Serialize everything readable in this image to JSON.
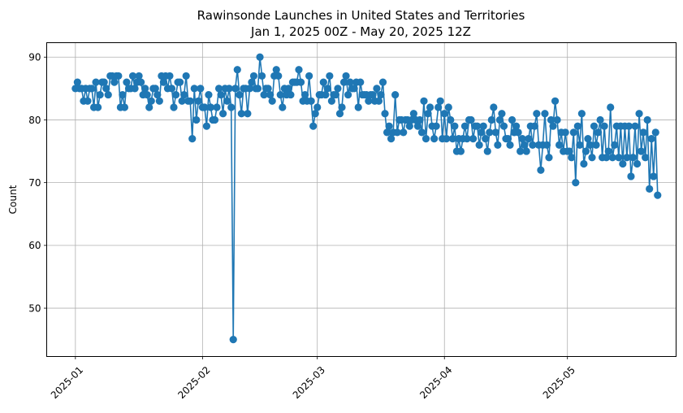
{
  "chart_data": {
    "type": "line",
    "title": "Rawinsonde Launches in United States and Territories",
    "subtitle": "Jan 1, 2025 00Z - May 20, 2025 12Z",
    "xlabel": "",
    "ylabel": "Count",
    "xlim": [
      "2024-12-25T00",
      "2025-05-27T12"
    ],
    "ylim": [
      42.3,
      92.3
    ],
    "grid": true,
    "color": "#1f77b4",
    "x_ticks": [
      {
        "label": "2025-01",
        "date": "2025-01-01T00"
      },
      {
        "label": "2025-02",
        "date": "2025-02-01T00"
      },
      {
        "label": "2025-03",
        "date": "2025-03-01T00"
      },
      {
        "label": "2025-04",
        "date": "2025-04-01T00"
      },
      {
        "label": "2025-05",
        "date": "2025-05-01T00"
      }
    ],
    "y_ticks": [
      50,
      60,
      70,
      80,
      90
    ],
    "series": [
      {
        "name": "",
        "start": "2025-01-01T00",
        "interval_hours": 12,
        "values": [
          85,
          86,
          85,
          85,
          83,
          85,
          83,
          85,
          85,
          82,
          86,
          82,
          84,
          86,
          86,
          85,
          84,
          87,
          87,
          86,
          87,
          87,
          82,
          84,
          82,
          86,
          85,
          85,
          87,
          85,
          86,
          87,
          86,
          84,
          85,
          84,
          82,
          83,
          85,
          85,
          84,
          83,
          87,
          86,
          87,
          85,
          87,
          85,
          82,
          84,
          86,
          86,
          83,
          84,
          87,
          83,
          83,
          77,
          85,
          80,
          83,
          85,
          82,
          82,
          79,
          84,
          82,
          80,
          80,
          82,
          85,
          84,
          81,
          85,
          83,
          85,
          82,
          45,
          85,
          88,
          84,
          81,
          85,
          85,
          81,
          85,
          86,
          87,
          85,
          85,
          90,
          87,
          84,
          85,
          85,
          84,
          83,
          87,
          88,
          87,
          84,
          82,
          85,
          84,
          85,
          84,
          86,
          86,
          86,
          88,
          86,
          83,
          84,
          83,
          87,
          83,
          79,
          81,
          82,
          84,
          84,
          86,
          84,
          85,
          87,
          83,
          84,
          84,
          85,
          81,
          82,
          86,
          87,
          84,
          86,
          85,
          85,
          86,
          82,
          86,
          84,
          84,
          84,
          83,
          84,
          84,
          83,
          85,
          83,
          84,
          86,
          81,
          78,
          79,
          77,
          78,
          84,
          78,
          80,
          80,
          78,
          80,
          80,
          79,
          80,
          81,
          80,
          79,
          80,
          78,
          83,
          77,
          81,
          82,
          79,
          77,
          79,
          82,
          83,
          77,
          81,
          77,
          82,
          80,
          77,
          79,
          75,
          77,
          75,
          77,
          79,
          77,
          80,
          80,
          77,
          79,
          79,
          76,
          78,
          79,
          77,
          75,
          78,
          80,
          82,
          78,
          76,
          80,
          81,
          79,
          77,
          77,
          76,
          80,
          78,
          79,
          78,
          75,
          77,
          76,
          75,
          77,
          79,
          76,
          79,
          81,
          76,
          72,
          76,
          81,
          76,
          74,
          80,
          79,
          83,
          80,
          76,
          78,
          75,
          78,
          75,
          75,
          74,
          78,
          70,
          79,
          76,
          81,
          73,
          75,
          77,
          76,
          74,
          79,
          76,
          78,
          80,
          74,
          79,
          74,
          75,
          82,
          74,
          76,
          79,
          74,
          79,
          73,
          79,
          74,
          79,
          71,
          74,
          79,
          73,
          81,
          75,
          78,
          74,
          80,
          69,
          77,
          71,
          78,
          68
        ]
      }
    ]
  }
}
